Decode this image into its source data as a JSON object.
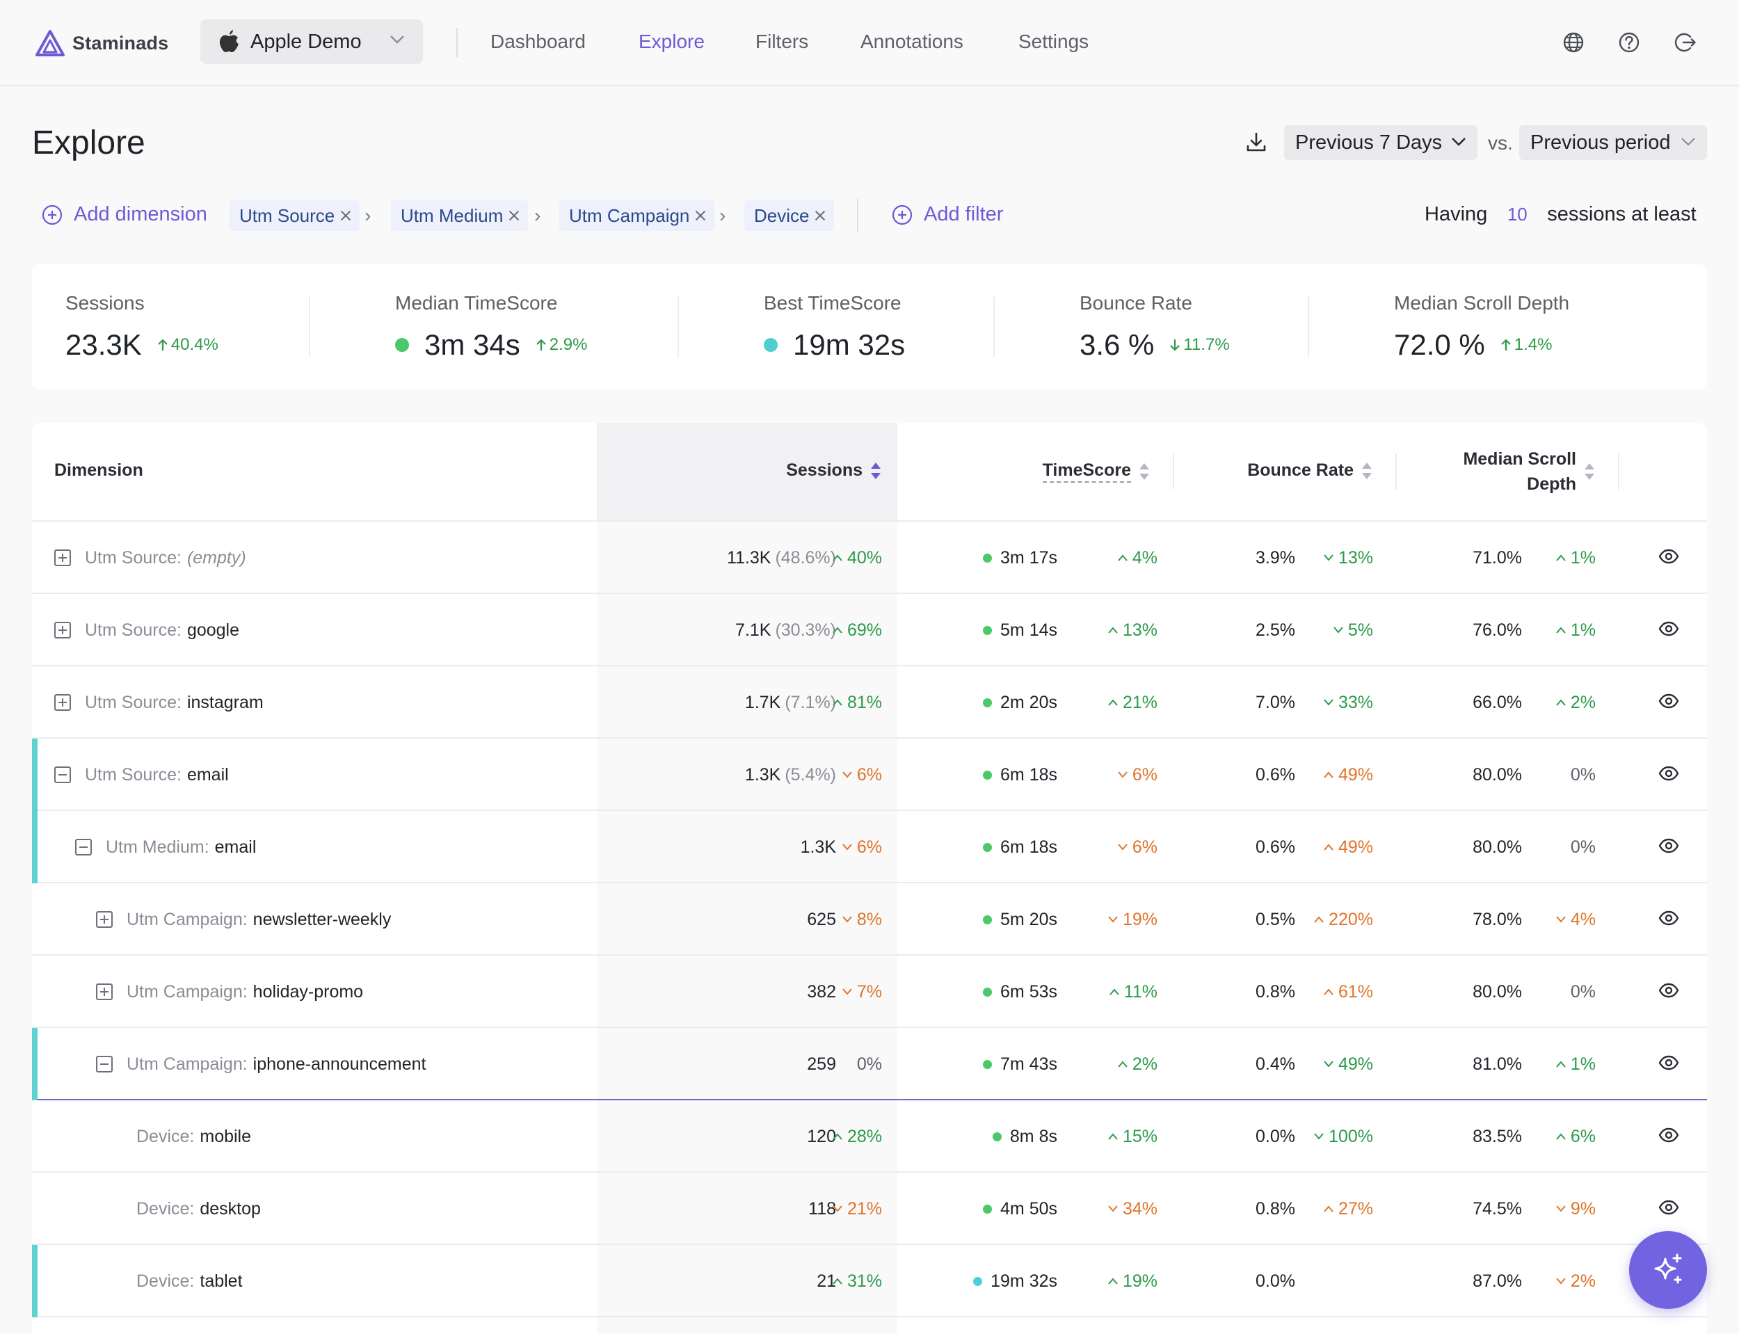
{
  "app": {
    "logo": "Staminads"
  },
  "workspace": {
    "name": "Apple Demo",
    "icon": "apple-icon"
  },
  "nav": {
    "links": [
      {
        "label": "Dashboard",
        "active": false
      },
      {
        "label": "Explore",
        "active": true
      },
      {
        "label": "Filters",
        "active": false
      },
      {
        "label": "Annotations",
        "active": false
      },
      {
        "label": "Settings",
        "active": false
      }
    ],
    "icons": [
      "globe-icon",
      "help-icon",
      "logout-icon"
    ]
  },
  "page": {
    "title": "Explore",
    "period": "Previous 7 Days",
    "vs_label": "vs.",
    "comparison": "Previous period"
  },
  "dimensions_bar": {
    "add_dimension_label": "Add dimension",
    "chips": [
      "Utm Source",
      "Utm Medium",
      "Utm Campaign",
      "Device"
    ],
    "separator": "›",
    "add_filter_label": "Add filter",
    "having_prefix": "Having",
    "having_value": "10",
    "having_suffix": "sessions at least"
  },
  "metrics": [
    {
      "label": "Sessions",
      "value": "23.3K",
      "delta": "40.4%",
      "direction": "up",
      "dot": null
    },
    {
      "label": "Median TimeScore",
      "value": "3m 34s",
      "delta": "2.9%",
      "direction": "up",
      "dot": "#4cc76a"
    },
    {
      "label": "Best TimeScore",
      "value": "19m 32s",
      "delta": null,
      "direction": null,
      "dot": "#4fcfcf"
    },
    {
      "label": "Bounce Rate",
      "value": "3.6 %",
      "delta": "11.7%",
      "direction": "down-good",
      "dot": null
    },
    {
      "label": "Median Scroll Depth",
      "value": "72.0 %",
      "delta": "1.4%",
      "direction": "up",
      "dot": null
    }
  ],
  "table": {
    "headers": {
      "dimension": "Dimension",
      "sessions": "Sessions",
      "timescore": "TimeScore",
      "bounce_rate": "Bounce Rate",
      "scroll_line1": "Median Scroll",
      "scroll_line2": "Depth"
    },
    "rows": [
      {
        "toggle": "plus",
        "label": "Utm Source:",
        "value": "(empty)",
        "empty": true,
        "sessions": "11.3K",
        "share": "(48.6%)",
        "sessions_delta": "40%",
        "sessions_dir": "up-good",
        "timescore": "3m 17s",
        "ts_delta": "4%",
        "ts_dir": "up-good",
        "bounce": "3.9%",
        "bounce_delta": "13%",
        "bounce_dir": "down-good",
        "scroll": "71.0%",
        "scroll_delta": "1%",
        "scroll_dir": "up-good"
      },
      {
        "toggle": "plus",
        "label": "Utm Source:",
        "value": "google",
        "sessions": "7.1K",
        "share": "(30.3%)",
        "sessions_delta": "69%",
        "sessions_dir": "up-good",
        "timescore": "5m 14s",
        "ts_delta": "13%",
        "ts_dir": "up-good",
        "bounce": "2.5%",
        "bounce_delta": "5%",
        "bounce_dir": "down-good",
        "scroll": "76.0%",
        "scroll_delta": "1%",
        "scroll_dir": "up-good"
      },
      {
        "toggle": "plus",
        "label": "Utm Source:",
        "value": "instagram",
        "sessions": "1.7K",
        "share": "(7.1%)",
        "sessions_delta": "81%",
        "sessions_dir": "up-good",
        "timescore": "2m 20s",
        "ts_delta": "21%",
        "ts_dir": "up-good",
        "bounce": "7.0%",
        "bounce_delta": "33%",
        "bounce_dir": "down-good",
        "scroll": "66.0%",
        "scroll_delta": "2%",
        "scroll_dir": "up-good"
      },
      {
        "toggle": "minus",
        "label": "Utm Source:",
        "value": "email",
        "sessions": "1.3K",
        "share": "(5.4%)",
        "sessions_delta": "6%",
        "sessions_dir": "down-bad",
        "timescore": "6m 18s",
        "ts_delta": "6%",
        "ts_dir": "down-bad",
        "bounce": "0.6%",
        "bounce_delta": "49%",
        "bounce_dir": "up-bad",
        "scroll": "80.0%",
        "scroll_delta": "0%",
        "scroll_dir": "neutral"
      },
      {
        "toggle": "minus",
        "label": "Utm Medium:",
        "value": "email",
        "sessions": "1.3K",
        "share": "",
        "sessions_delta": "6%",
        "sessions_dir": "down-bad",
        "timescore": "6m 18s",
        "ts_delta": "6%",
        "ts_dir": "down-bad",
        "bounce": "0.6%",
        "bounce_delta": "49%",
        "bounce_dir": "up-bad",
        "scroll": "80.0%",
        "scroll_delta": "0%",
        "scroll_dir": "neutral"
      },
      {
        "toggle": "plus",
        "label": "Utm Campaign:",
        "value": "newsletter-weekly",
        "sessions": "625",
        "share": "",
        "sessions_delta": "8%",
        "sessions_dir": "down-bad",
        "timescore": "5m 20s",
        "ts_delta": "19%",
        "ts_dir": "down-bad",
        "bounce": "0.5%",
        "bounce_delta": "220%",
        "bounce_dir": "up-bad",
        "scroll": "78.0%",
        "scroll_delta": "4%",
        "scroll_dir": "down-bad"
      },
      {
        "toggle": "plus",
        "label": "Utm Campaign:",
        "value": "holiday-promo",
        "sessions": "382",
        "share": "",
        "sessions_delta": "7%",
        "sessions_dir": "down-bad",
        "timescore": "6m 53s",
        "ts_delta": "11%",
        "ts_dir": "up-good",
        "bounce": "0.8%",
        "bounce_delta": "61%",
        "bounce_dir": "up-bad",
        "scroll": "80.0%",
        "scroll_delta": "0%",
        "scroll_dir": "neutral"
      },
      {
        "toggle": "minus",
        "label": "Utm Campaign:",
        "value": "iphone-announcement",
        "sessions": "259",
        "share": "",
        "sessions_delta": "0%",
        "sessions_dir": "neutral",
        "timescore": "7m 43s",
        "ts_delta": "2%",
        "ts_dir": "up-good",
        "bounce": "0.4%",
        "bounce_delta": "49%",
        "bounce_dir": "down-good",
        "scroll": "81.0%",
        "scroll_delta": "1%",
        "scroll_dir": "up-good"
      },
      {
        "toggle": null,
        "label": "Device:",
        "value": "mobile",
        "sessions": "120",
        "share": "",
        "sessions_delta": "28%",
        "sessions_dir": "up-good",
        "timescore": "8m 8s",
        "ts_delta": "15%",
        "ts_dir": "up-good",
        "bounce": "0.0%",
        "bounce_delta": "100%",
        "bounce_dir": "down-good",
        "scroll": "83.5%",
        "scroll_delta": "6%",
        "scroll_dir": "up-good"
      },
      {
        "toggle": null,
        "label": "Device:",
        "value": "desktop",
        "sessions": "118",
        "share": "",
        "sessions_delta": "21%",
        "sessions_dir": "down-bad",
        "timescore": "4m 50s",
        "ts_delta": "34%",
        "ts_dir": "down-bad",
        "bounce": "0.8%",
        "bounce_delta": "27%",
        "bounce_dir": "up-bad",
        "scroll": "74.5%",
        "scroll_delta": "9%",
        "scroll_dir": "down-bad"
      },
      {
        "toggle": null,
        "label": "Device:",
        "value": "tablet",
        "sessions": "21",
        "share": "",
        "sessions_delta": "31%",
        "sessions_dir": "up-good",
        "timescore": "19m 32s",
        "ts_delta": "19%",
        "ts_dir": "up-good",
        "bounce": "0.0%",
        "bounce_delta": "",
        "bounce_dir": "none",
        "scroll": "87.0%",
        "scroll_delta": "2%",
        "scroll_dir": "down-bad"
      }
    ]
  },
  "colors": {
    "accent": "#6b5bd6",
    "good": "#2e9a4a",
    "bad": "#e0742b",
    "highlight": "#5fd1d1",
    "dot_green": "#4cc76a",
    "dot_teal": "#4fcfcf"
  },
  "fab": {
    "icon": "sparkles-icon"
  }
}
